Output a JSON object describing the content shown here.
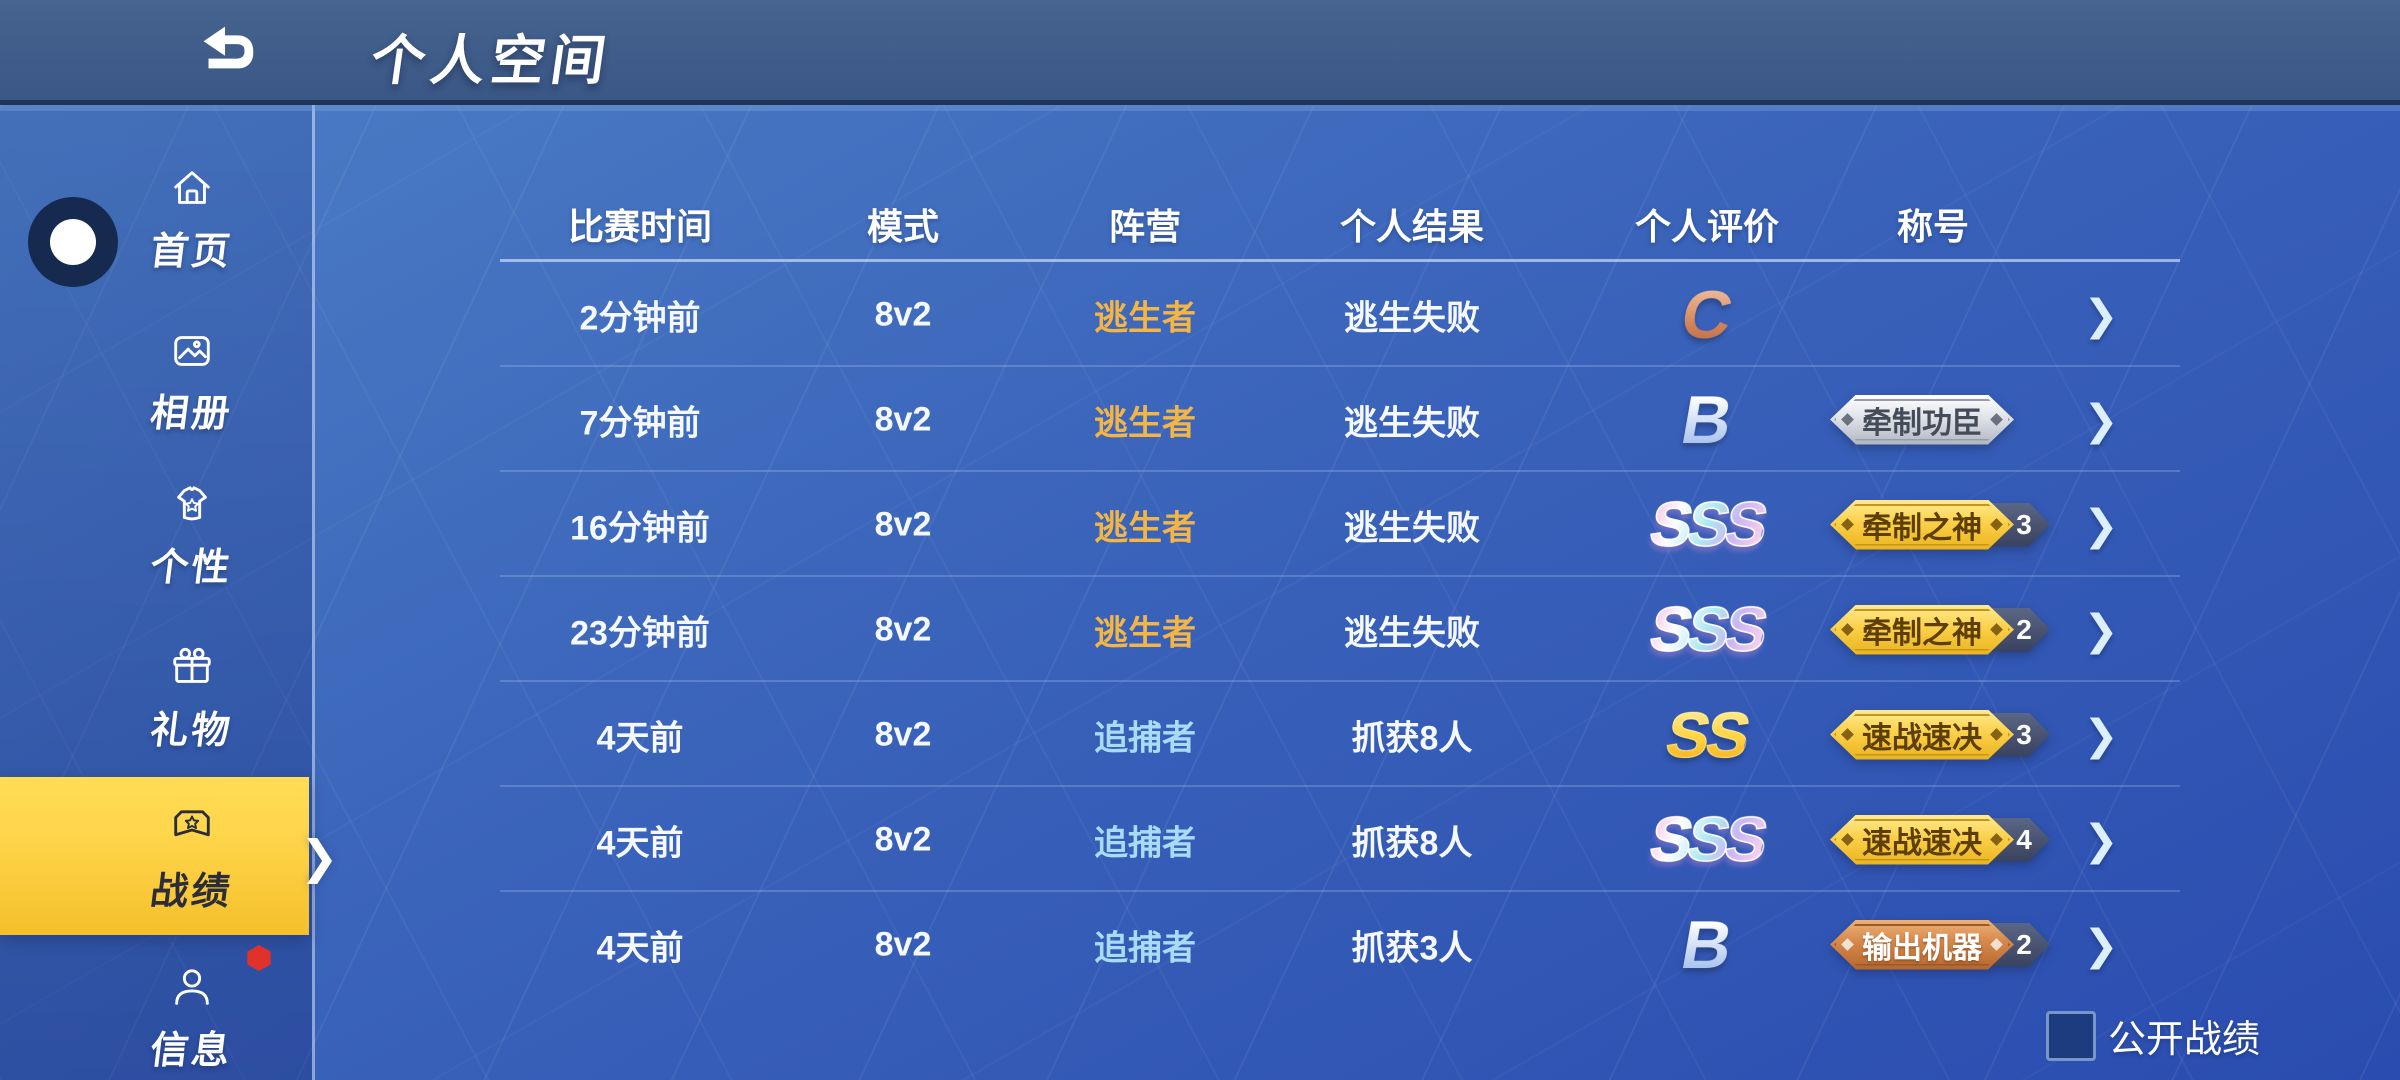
{
  "header": {
    "title": "个人空间"
  },
  "sidebar": {
    "items": [
      {
        "id": "home",
        "label": "首页",
        "icon": "home-icon",
        "selected": false
      },
      {
        "id": "album",
        "label": "相册",
        "icon": "image-icon",
        "selected": false
      },
      {
        "id": "personality",
        "label": "个性",
        "icon": "shirt-icon",
        "selected": false
      },
      {
        "id": "gift",
        "label": "礼物",
        "icon": "gift-icon",
        "selected": false
      },
      {
        "id": "record",
        "label": "战绩",
        "icon": "medal-icon",
        "selected": true
      },
      {
        "id": "info",
        "label": "信息",
        "icon": "person-icon",
        "selected": false,
        "has_notification": true
      }
    ]
  },
  "table": {
    "columns": [
      "比赛时间",
      "模式",
      "阵营",
      "个人结果",
      "个人评价",
      "称号"
    ],
    "rows": [
      {
        "time": "2分钟前",
        "mode": "8v2",
        "faction": "逃生者",
        "faction_type": "survivor",
        "result": "逃生失败",
        "grade": "C",
        "title": null
      },
      {
        "time": "7分钟前",
        "mode": "8v2",
        "faction": "逃生者",
        "faction_type": "survivor",
        "result": "逃生失败",
        "grade": "B",
        "title": {
          "label": "牵制功臣",
          "tier": "silver",
          "count": null
        }
      },
      {
        "time": "16分钟前",
        "mode": "8v2",
        "faction": "逃生者",
        "faction_type": "survivor",
        "result": "逃生失败",
        "grade": "SSS",
        "title": {
          "label": "牵制之神",
          "tier": "gold",
          "count": "3"
        }
      },
      {
        "time": "23分钟前",
        "mode": "8v2",
        "faction": "逃生者",
        "faction_type": "survivor",
        "result": "逃生失败",
        "grade": "SSS",
        "title": {
          "label": "牵制之神",
          "tier": "gold",
          "count": "2"
        }
      },
      {
        "time": "4天前",
        "mode": "8v2",
        "faction": "追捕者",
        "faction_type": "hunter",
        "result": "抓获8人",
        "grade": "SS",
        "title": {
          "label": "速战速决",
          "tier": "gold",
          "count": "3"
        }
      },
      {
        "time": "4天前",
        "mode": "8v2",
        "faction": "追捕者",
        "faction_type": "hunter",
        "result": "抓获8人",
        "grade": "SSS",
        "title": {
          "label": "速战速决",
          "tier": "gold",
          "count": "4"
        }
      },
      {
        "time": "4天前",
        "mode": "8v2",
        "faction": "追捕者",
        "faction_type": "hunter",
        "result": "抓获3人",
        "grade": "B",
        "title": {
          "label": "输出机器",
          "tier": "bronze",
          "count": "2"
        }
      }
    ]
  },
  "footer": {
    "public_label": "公开战绩",
    "checkbox_checked": false
  },
  "icons": {
    "row_chevron": "❯",
    "selected_chevron": "❯"
  },
  "colors": {
    "survivor": "#F2B546",
    "hunter": "#A9DAF6",
    "selected_bg": "#FFD44A",
    "notification": "#E0312A"
  }
}
